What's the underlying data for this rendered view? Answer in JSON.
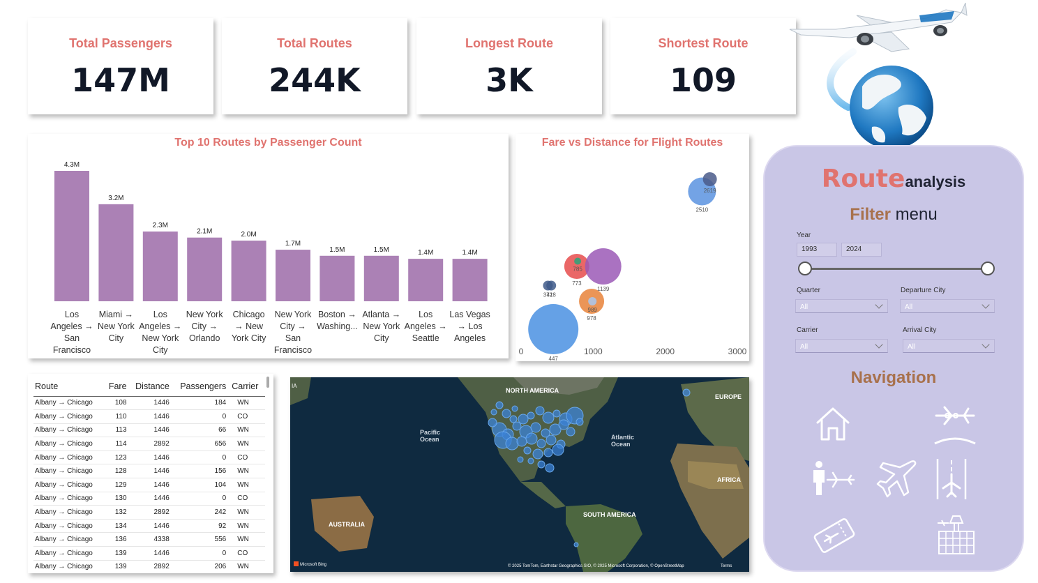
{
  "kpis": [
    {
      "label": "Total Passengers",
      "value": "147M"
    },
    {
      "label": "Total Routes",
      "value": "244K"
    },
    {
      "label": "Longest Route",
      "value": "3K"
    },
    {
      "label": "Shortest Route",
      "value": "109"
    }
  ],
  "bar_chart": {
    "title": "Top 10 Routes by Passenger Count"
  },
  "scatter": {
    "title": "Fare vs Distance for Flight Routes"
  },
  "chart_data": [
    {
      "type": "bar",
      "title": "Top 10 Routes by Passenger Count",
      "categories": [
        [
          "Los",
          "Angeles →",
          "San",
          "Francisco"
        ],
        [
          "Miami →",
          "New York",
          "City"
        ],
        [
          "Los",
          "Angeles →",
          "New York",
          "City"
        ],
        [
          "New York",
          "City →",
          "Orlando"
        ],
        [
          "Chicago",
          "→ New",
          "York City"
        ],
        [
          "New York",
          "City →",
          "San",
          "Francisco"
        ],
        [
          "Boston →",
          "Washing..."
        ],
        [
          "Atlanta →",
          "New York",
          "City"
        ],
        [
          "Los",
          "Angeles →",
          "Seattle"
        ],
        [
          "Las Vegas",
          "→ Los",
          "Angeles"
        ]
      ],
      "values": [
        4.3,
        3.2,
        2.3,
        2.1,
        2.0,
        1.7,
        1.5,
        1.5,
        1.4,
        1.4
      ],
      "data_labels": [
        "4.3M",
        "3.2M",
        "2.3M",
        "2.1M",
        "2.0M",
        "1.7M",
        "1.5M",
        "1.5M",
        "1.4M",
        "1.4M"
      ],
      "unit": "M",
      "color": "#ab81b5",
      "ylim": [
        0,
        4.3
      ]
    },
    {
      "type": "scatter",
      "title": "Fare vs Distance for Flight Routes",
      "xlim": [
        0,
        3000
      ],
      "x_ticks": [
        "0",
        "1000",
        "2000",
        "3000"
      ],
      "points": [
        {
          "x": 447,
          "y": 0.08,
          "size": 36,
          "color": "#4a90e2",
          "label": "447"
        },
        {
          "x": 372,
          "y": 0.33,
          "size": 7,
          "color": "#3f5a8a",
          "label": "372"
        },
        {
          "x": 418,
          "y": 0.33,
          "size": 7,
          "color": "#3f5a8a",
          "label": "418"
        },
        {
          "x": 773,
          "y": 0.44,
          "size": 18,
          "color": "#e64c4c",
          "label": "773"
        },
        {
          "x": 785,
          "y": 0.47,
          "size": 5,
          "color": "#2aa57a",
          "label": "785"
        },
        {
          "x": 1139,
          "y": 0.44,
          "size": 26,
          "color": "#9b59b6",
          "label": "1139"
        },
        {
          "x": 978,
          "y": 0.24,
          "size": 18,
          "color": "#e8833a",
          "label": "978"
        },
        {
          "x": 989,
          "y": 0.24,
          "size": 6,
          "color": "#a8c8f0",
          "label": "989"
        },
        {
          "x": 2510,
          "y": 0.87,
          "size": 20,
          "color": "#5b93e0",
          "label": "2510"
        },
        {
          "x": 2619,
          "y": 0.94,
          "size": 10,
          "color": "#4a5a8a",
          "label": "2619"
        }
      ]
    }
  ],
  "table": {
    "columns": [
      "Route",
      "Fare",
      "Distance",
      "Passengers",
      "Carrier"
    ],
    "rows": [
      [
        "Albany → Chicago",
        "108",
        "1446",
        "184",
        "WN"
      ],
      [
        "Albany → Chicago",
        "110",
        "1446",
        "0",
        "CO"
      ],
      [
        "Albany → Chicago",
        "113",
        "1446",
        "66",
        "WN"
      ],
      [
        "Albany → Chicago",
        "114",
        "2892",
        "656",
        "WN"
      ],
      [
        "Albany → Chicago",
        "123",
        "1446",
        "0",
        "CO"
      ],
      [
        "Albany → Chicago",
        "128",
        "1446",
        "156",
        "WN"
      ],
      [
        "Albany → Chicago",
        "129",
        "1446",
        "104",
        "WN"
      ],
      [
        "Albany → Chicago",
        "130",
        "1446",
        "0",
        "CO"
      ],
      [
        "Albany → Chicago",
        "132",
        "2892",
        "242",
        "WN"
      ],
      [
        "Albany → Chicago",
        "134",
        "1446",
        "92",
        "WN"
      ],
      [
        "Albany → Chicago",
        "136",
        "4338",
        "556",
        "WN"
      ],
      [
        "Albany → Chicago",
        "139",
        "1446",
        "0",
        "CO"
      ],
      [
        "Albany → Chicago",
        "139",
        "2892",
        "206",
        "WN"
      ]
    ]
  },
  "map": {
    "labels": {
      "north_america": "NORTH AMERICA",
      "europe": "EUROPE",
      "pacific": "Pacific\nOcean",
      "atlantic": "Atlantic\nOcean",
      "africa": "AFRICA",
      "australia": "AUSTRALIA",
      "south_america": "SOUTH AMERICA",
      "edge": "IA"
    },
    "attribution": "© 2025 TomTom, Earthstar Geographics SIO, © 2025 Microsoft Corporation, © OpenStreetMap",
    "terms": "Terms",
    "provider": "Microsoft Bing"
  },
  "panel": {
    "title_big": "Route",
    "title_small": "analysis",
    "filter_title_a": "Filter",
    "filter_title_b": " menu",
    "year_label": "Year",
    "year_from": "1993",
    "year_to": "2024",
    "quarter_label": "Quarter",
    "quarter_value": "All",
    "departure_label": "Departure City",
    "departure_value": "All",
    "carrier_label": "Carrier",
    "carrier_value": "All",
    "arrival_label": "Arrival City",
    "arrival_value": "All",
    "navigation_title": "Navigation"
  },
  "colors": {
    "accent": "#e0736f",
    "nav_title": "#a8714c",
    "panel_bg": "#c9c6e6",
    "bar": "#ab81b5",
    "map_dots": "#3b82d6"
  }
}
